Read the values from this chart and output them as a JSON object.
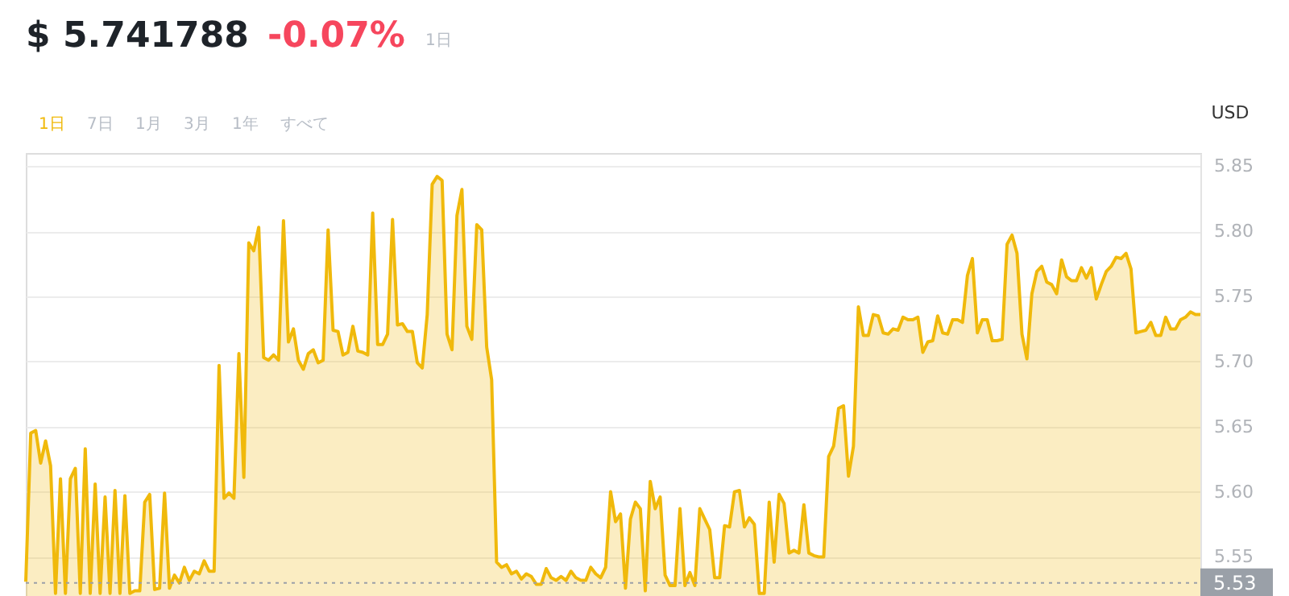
{
  "chart_data": {
    "type": "area",
    "title": "$ 5.741788",
    "subtitle": "-0.07%",
    "ylabel": "USD",
    "annotations": [
      "1日",
      "1日",
      "7日",
      "1月",
      "3月",
      "1年",
      "すべて"
    ],
    "categories": [
      null,
      null,
      null,
      null,
      null,
      null,
      null,
      null,
      null,
      null,
      null,
      null,
      null,
      null,
      null,
      null,
      null,
      null,
      null,
      null,
      null,
      null,
      null,
      null,
      null,
      null,
      null,
      null,
      null,
      null,
      null,
      null,
      null,
      null,
      null,
      null,
      null,
      null,
      null,
      null,
      null,
      null,
      null,
      null,
      null,
      null,
      null,
      null,
      null,
      null,
      null,
      null,
      null,
      null,
      null,
      null,
      null,
      null,
      null,
      null,
      null,
      null,
      null,
      null,
      null,
      null,
      null,
      null,
      null,
      null,
      null,
      null,
      null,
      null,
      null,
      null,
      null,
      null,
      null,
      null,
      null,
      null,
      null,
      null,
      null,
      null,
      null,
      null,
      null,
      null,
      null,
      null,
      null,
      null,
      null,
      null,
      null,
      null,
      null,
      null,
      null,
      null,
      null,
      null,
      null,
      null,
      null,
      null,
      null,
      null,
      null,
      null,
      null,
      null,
      null,
      null,
      null,
      null,
      null,
      null,
      null,
      null,
      null,
      null,
      null,
      null,
      null,
      null,
      null,
      null,
      null,
      null,
      null,
      null,
      null,
      null,
      null,
      null,
      null,
      null,
      null,
      null,
      null,
      null,
      null,
      null,
      null,
      null,
      null,
      null,
      null,
      null,
      null,
      null,
      null,
      null,
      null,
      null,
      null,
      null,
      null,
      null,
      null,
      null,
      null,
      null,
      null,
      null,
      null,
      null,
      null,
      null,
      null,
      null,
      null,
      null,
      null,
      null,
      null,
      null,
      null,
      null,
      null,
      null,
      null,
      null,
      null,
      null,
      null,
      null,
      null,
      null,
      null,
      null,
      null,
      null,
      null,
      null,
      null,
      null,
      null,
      null,
      null,
      null,
      null,
      null,
      null,
      null,
      null,
      null,
      null,
      null,
      null,
      null,
      null,
      null,
      null,
      null,
      null,
      null,
      null,
      null,
      null,
      null,
      null,
      null,
      null,
      null,
      null,
      null,
      null,
      null,
      null,
      null,
      null,
      null,
      null,
      null
    ],
    "series": [
      {
        "color": "#f0b90b",
        "values": [
          5.531,
          5.645,
          5.647,
          5.622,
          5.639,
          5.62,
          5.522,
          5.61,
          5.522,
          5.61,
          5.618,
          5.522,
          5.633,
          5.522,
          5.606,
          5.522,
          5.596,
          5.522,
          5.601,
          5.522,
          5.597,
          5.522,
          5.524,
          5.524,
          5.592,
          5.598,
          5.525,
          5.526,
          5.599,
          5.526,
          5.536,
          5.53,
          5.542,
          5.532,
          5.539,
          5.537,
          5.547,
          5.539,
          5.539,
          5.697,
          5.595,
          5.599,
          5.595,
          5.706,
          5.611,
          5.791,
          5.785,
          5.803,
          5.703,
          5.701,
          5.705,
          5.701,
          5.808,
          5.715,
          5.725,
          5.701,
          5.694,
          5.706,
          5.709,
          5.699,
          5.701,
          5.801,
          5.724,
          5.723,
          5.705,
          5.707,
          5.727,
          5.708,
          5.707,
          5.705,
          5.814,
          5.713,
          5.713,
          5.721,
          5.809,
          5.728,
          5.729,
          5.723,
          5.723,
          5.699,
          5.695,
          5.736,
          5.836,
          5.842,
          5.839,
          5.721,
          5.709,
          5.812,
          5.832,
          5.727,
          5.717,
          5.805,
          5.801,
          5.711,
          5.686,
          5.546,
          5.542,
          5.544,
          5.537,
          5.539,
          5.533,
          5.537,
          5.535,
          5.529,
          5.529,
          5.541,
          5.534,
          5.532,
          5.535,
          5.532,
          5.539,
          5.534,
          5.532,
          5.532,
          5.542,
          5.537,
          5.534,
          5.542,
          5.6,
          5.577,
          5.583,
          5.526,
          5.579,
          5.592,
          5.587,
          5.524,
          5.608,
          5.587,
          5.596,
          5.536,
          5.528,
          5.528,
          5.587,
          5.528,
          5.538,
          5.528,
          5.587,
          5.579,
          5.571,
          5.534,
          5.534,
          5.574,
          5.573,
          5.6,
          5.601,
          5.573,
          5.58,
          5.575,
          5.522,
          5.522,
          5.592,
          5.546,
          5.598,
          5.591,
          5.553,
          5.555,
          5.553,
          5.59,
          5.553,
          5.551,
          5.55,
          5.55,
          5.627,
          5.635,
          5.664,
          5.666,
          5.612,
          5.635,
          5.742,
          5.72,
          5.72,
          5.736,
          5.735,
          5.722,
          5.721,
          5.725,
          5.724,
          5.734,
          5.732,
          5.732,
          5.734,
          5.707,
          5.715,
          5.716,
          5.735,
          5.722,
          5.721,
          5.732,
          5.732,
          5.73,
          5.766,
          5.779,
          5.722,
          5.732,
          5.732,
          5.716,
          5.716,
          5.717,
          5.79,
          5.797,
          5.783,
          5.721,
          5.702,
          5.752,
          5.769,
          5.773,
          5.761,
          5.759,
          5.752,
          5.778,
          5.765,
          5.762,
          5.762,
          5.772,
          5.764,
          5.772,
          5.748,
          5.759,
          5.769,
          5.773,
          5.78,
          5.779,
          5.783,
          5.771,
          5.722,
          5.723,
          5.724,
          5.73,
          5.72,
          5.72,
          5.734,
          5.725,
          5.725,
          5.732,
          5.734,
          5.738,
          5.736,
          5.736
        ]
      }
    ],
    "ylim": [
      5.52,
      5.86
    ],
    "yticks": [
      5.55,
      {
        "value": 5.6,
        "label": "5.60"
      },
      5.65,
      {
        "value": 5.7,
        "label": "5.70"
      },
      5.75,
      {
        "value": 5.8,
        "label": "5.80"
      },
      5.85
    ],
    "grid": "y",
    "ref_lines": [
      {
        "axis": "y",
        "value": 5.53,
        "label": "5.53",
        "line_style": "dotted",
        "color": "#9aa0a8"
      }
    ]
  }
}
